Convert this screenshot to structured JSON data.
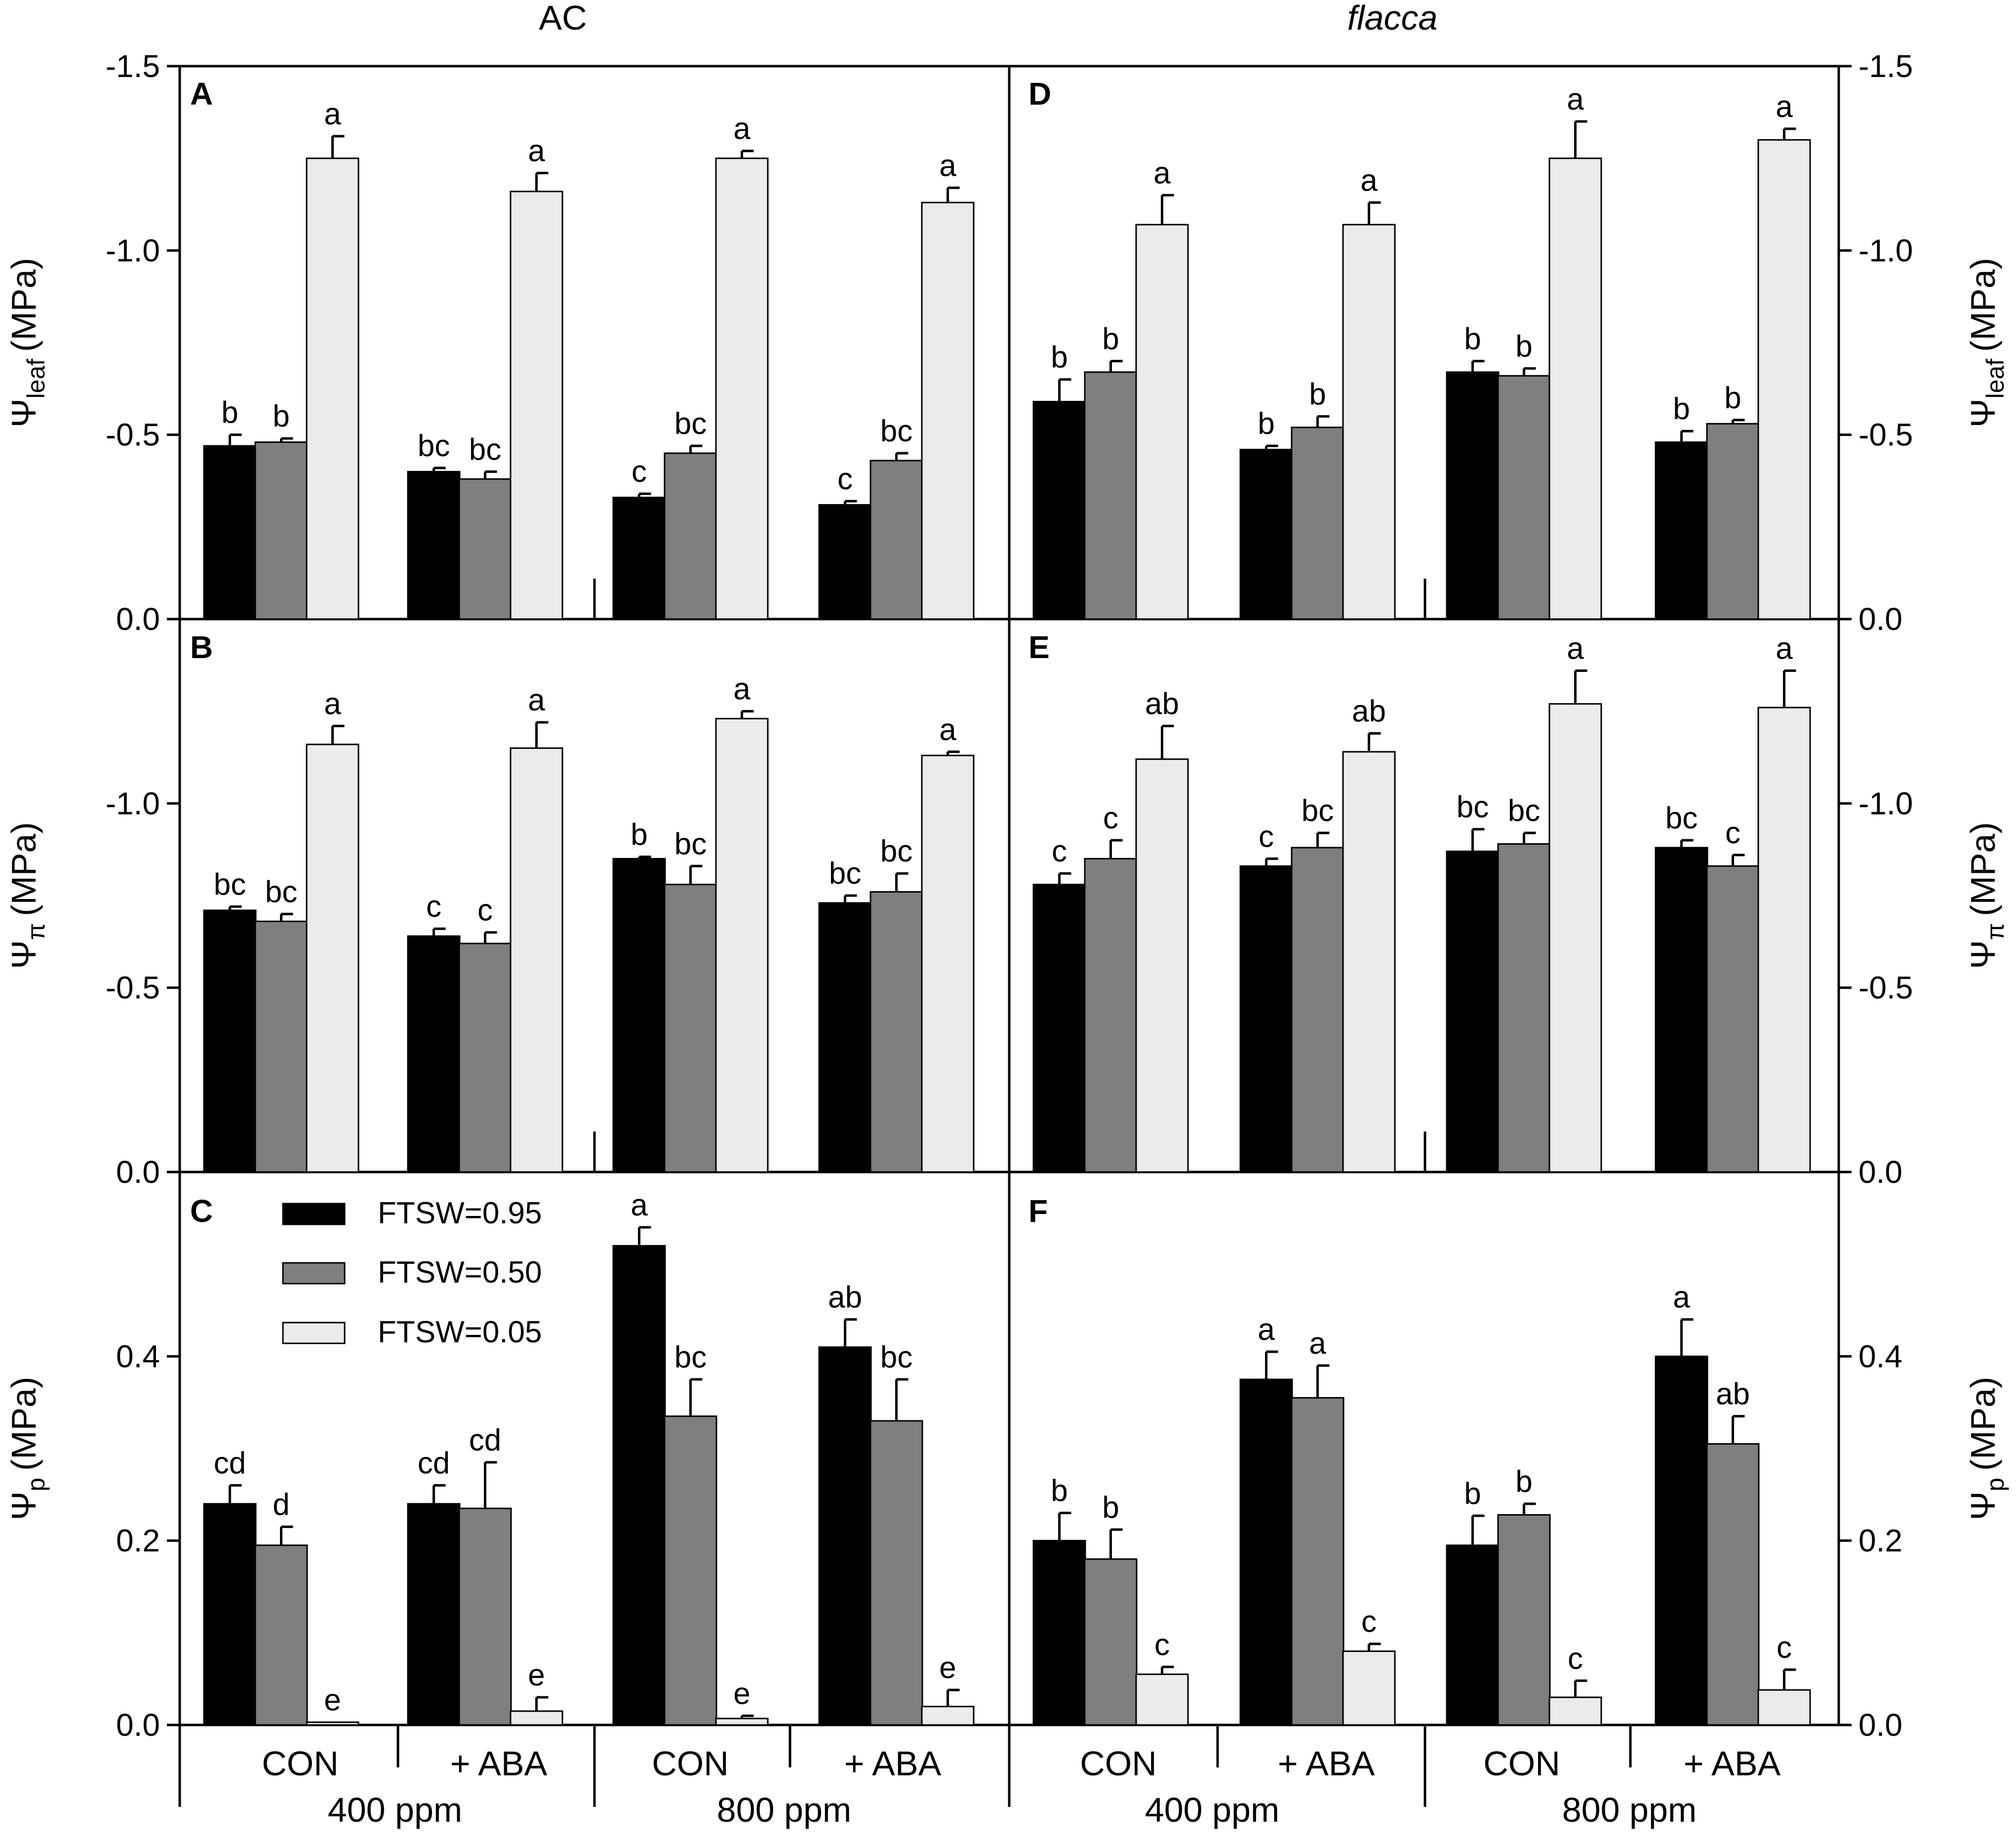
{
  "figure": {
    "column_titles": [
      "AC",
      "flacca"
    ],
    "legend": [
      "FTSW=0.95",
      "FTSW=0.50",
      "FTSW=0.05"
    ]
  },
  "colors": {
    "ftsw_095": "#000000",
    "ftsw_050": "#7f7f7f",
    "ftsw_005": "#ebebeb",
    "axis": "#000000"
  },
  "chart_data": [
    {
      "panel": "A",
      "type": "bar",
      "genotype": "AC",
      "ylabel_main": "Ψ",
      "ylabel_sub": "leaf",
      "ylabel_unit": "(MPa)",
      "ylim": [
        0,
        -1.5
      ],
      "ticks": [
        -1.5,
        -1.0,
        -0.5,
        0.0
      ],
      "tick_labels": [
        "-1.5",
        "-1.0",
        "-0.5",
        "0.0"
      ],
      "categories": [
        "400 ppm CON",
        "400 ppm + ABA",
        "800 ppm CON",
        "800 ppm + ABA"
      ],
      "series": [
        {
          "name": "FTSW=0.95",
          "values": [
            -0.47,
            -0.4,
            -0.33,
            -0.31
          ],
          "errors": [
            0.03,
            0.01,
            0.01,
            0.01
          ],
          "letters": [
            "b",
            "bc",
            "c",
            "c"
          ]
        },
        {
          "name": "FTSW=0.50",
          "values": [
            -0.48,
            -0.38,
            -0.45,
            -0.43
          ],
          "errors": [
            0.01,
            0.02,
            0.02,
            0.02
          ],
          "letters": [
            "b",
            "bc",
            "bc",
            "bc"
          ]
        },
        {
          "name": "FTSW=0.05",
          "values": [
            -1.25,
            -1.16,
            -1.25,
            -1.13
          ],
          "errors": [
            0.06,
            0.05,
            0.02,
            0.04
          ],
          "letters": [
            "a",
            "a",
            "a",
            "a"
          ]
        }
      ]
    },
    {
      "panel": "B",
      "type": "bar",
      "genotype": "AC",
      "ylabel_main": "Ψ",
      "ylabel_sub": "π",
      "ylabel_unit": "(MPa)",
      "ylim": [
        0,
        -1.5
      ],
      "ticks": [
        -1.0,
        -0.5,
        0.0
      ],
      "tick_labels": [
        "-1.0",
        "-0.5",
        "0.0"
      ],
      "categories": [
        "400 ppm CON",
        "400 ppm + ABA",
        "800 ppm CON",
        "800 ppm + ABA"
      ],
      "series": [
        {
          "name": "FTSW=0.95",
          "values": [
            -0.71,
            -0.64,
            -0.85,
            -0.73
          ],
          "errors": [
            0.01,
            0.02,
            0.005,
            0.02
          ],
          "letters": [
            "bc",
            "c",
            "b",
            "bc"
          ]
        },
        {
          "name": "FTSW=0.50",
          "values": [
            -0.68,
            -0.62,
            -0.78,
            -0.76
          ],
          "errors": [
            0.02,
            0.03,
            0.05,
            0.05
          ],
          "letters": [
            "bc",
            "c",
            "bc",
            "bc"
          ]
        },
        {
          "name": "FTSW=0.05",
          "values": [
            -1.16,
            -1.15,
            -1.23,
            -1.13
          ],
          "errors": [
            0.05,
            0.07,
            0.02,
            0.01
          ],
          "letters": [
            "a",
            "a",
            "a",
            "a"
          ]
        }
      ]
    },
    {
      "panel": "C",
      "type": "bar",
      "genotype": "AC",
      "ylabel_main": "Ψ",
      "ylabel_sub": "p",
      "ylabel_unit": "(MPa)",
      "ylim": [
        0,
        0.6
      ],
      "ticks": [
        0.0,
        0.2,
        0.4
      ],
      "tick_labels": [
        "0.0",
        "0.2",
        "0.4"
      ],
      "categories": [
        "400 ppm CON",
        "400 ppm + ABA",
        "800 ppm CON",
        "800 ppm + ABA"
      ],
      "series": [
        {
          "name": "FTSW=0.95",
          "values": [
            0.24,
            0.24,
            0.52,
            0.41
          ],
          "errors": [
            0.02,
            0.02,
            0.02,
            0.03
          ],
          "letters": [
            "cd",
            "cd",
            "a",
            "ab"
          ]
        },
        {
          "name": "FTSW=0.50",
          "values": [
            0.195,
            0.235,
            0.335,
            0.33
          ],
          "errors": [
            0.02,
            0.05,
            0.04,
            0.045
          ],
          "letters": [
            "d",
            "cd",
            "bc",
            "bc"
          ]
        },
        {
          "name": "FTSW=0.05",
          "values": [
            0.003,
            0.015,
            0.007,
            0.02
          ],
          "errors": [
            0.0,
            0.015,
            0.003,
            0.018
          ],
          "letters": [
            "e",
            "e",
            "e",
            "e"
          ]
        }
      ]
    },
    {
      "panel": "D",
      "type": "bar",
      "genotype": "flacca",
      "ylabel_main": "Ψ",
      "ylabel_sub": "leaf",
      "ylabel_unit": "(MPa)",
      "ylim": [
        0,
        -1.5
      ],
      "ticks": [
        -1.5,
        -1.0,
        -0.5,
        0.0
      ],
      "tick_labels": [
        "-1.5",
        "-1.0",
        "-0.5",
        "0.0"
      ],
      "categories": [
        "400 ppm CON",
        "400 ppm + ABA",
        "800 ppm CON",
        "800 ppm + ABA"
      ],
      "series": [
        {
          "name": "FTSW=0.95",
          "values": [
            -0.59,
            -0.46,
            -0.67,
            -0.48
          ],
          "errors": [
            0.06,
            0.01,
            0.03,
            0.03
          ],
          "letters": [
            "b",
            "b",
            "b",
            "b"
          ]
        },
        {
          "name": "FTSW=0.50",
          "values": [
            -0.67,
            -0.52,
            -0.66,
            -0.53
          ],
          "errors": [
            0.03,
            0.03,
            0.02,
            0.01
          ],
          "letters": [
            "b",
            "b",
            "b",
            "b"
          ]
        },
        {
          "name": "FTSW=0.05",
          "values": [
            -1.07,
            -1.07,
            -1.25,
            -1.3
          ],
          "errors": [
            0.08,
            0.06,
            0.1,
            0.03
          ],
          "letters": [
            "a",
            "a",
            "a",
            "a"
          ]
        }
      ]
    },
    {
      "panel": "E",
      "type": "bar",
      "genotype": "flacca",
      "ylabel_main": "Ψ",
      "ylabel_sub": "π",
      "ylabel_unit": "(MPa)",
      "ylim": [
        0,
        -1.5
      ],
      "ticks": [
        -1.0,
        -0.5,
        0.0
      ],
      "tick_labels": [
        "-1.0",
        "-0.5",
        "0.0"
      ],
      "categories": [
        "400 ppm CON",
        "400 ppm + ABA",
        "800 ppm CON",
        "800 ppm + ABA"
      ],
      "series": [
        {
          "name": "FTSW=0.95",
          "values": [
            -0.78,
            -0.83,
            -0.87,
            -0.88
          ],
          "errors": [
            0.03,
            0.02,
            0.06,
            0.02
          ],
          "letters": [
            "c",
            "c",
            "bc",
            "bc"
          ]
        },
        {
          "name": "FTSW=0.50",
          "values": [
            -0.85,
            -0.88,
            -0.89,
            -0.83
          ],
          "errors": [
            0.05,
            0.04,
            0.03,
            0.03
          ],
          "letters": [
            "c",
            "bc",
            "bc",
            "c"
          ]
        },
        {
          "name": "FTSW=0.05",
          "values": [
            -1.12,
            -1.14,
            -1.27,
            -1.26
          ],
          "errors": [
            0.09,
            0.05,
            0.09,
            0.1
          ],
          "letters": [
            "ab",
            "ab",
            "a",
            "a"
          ]
        }
      ]
    },
    {
      "panel": "F",
      "type": "bar",
      "genotype": "flacca",
      "ylabel_main": "Ψ",
      "ylabel_sub": "p",
      "ylabel_unit": "(MPa)",
      "ylim": [
        0,
        0.6
      ],
      "ticks": [
        0.0,
        0.2,
        0.4
      ],
      "tick_labels": [
        "0.0",
        "0.2",
        "0.4"
      ],
      "categories": [
        "400 ppm CON",
        "400 ppm + ABA",
        "800 ppm CON",
        "800 ppm + ABA"
      ],
      "series": [
        {
          "name": "FTSW=0.95",
          "values": [
            0.2,
            0.375,
            0.195,
            0.4
          ],
          "errors": [
            0.03,
            0.03,
            0.032,
            0.04
          ],
          "letters": [
            "b",
            "a",
            "b",
            "a"
          ]
        },
        {
          "name": "FTSW=0.50",
          "values": [
            0.18,
            0.355,
            0.228,
            0.305
          ],
          "errors": [
            0.032,
            0.035,
            0.012,
            0.03
          ],
          "letters": [
            "b",
            "a",
            "b",
            "ab"
          ]
        },
        {
          "name": "FTSW=0.05",
          "values": [
            0.055,
            0.08,
            0.03,
            0.038
          ],
          "errors": [
            0.008,
            0.008,
            0.018,
            0.022
          ],
          "letters": [
            "c",
            "c",
            "c",
            "c"
          ]
        }
      ]
    }
  ],
  "x_axis": {
    "treatments": [
      "CON",
      "+ ABA",
      "CON",
      "+ ABA"
    ],
    "co2_levels": [
      "400 ppm",
      "800 ppm"
    ]
  }
}
